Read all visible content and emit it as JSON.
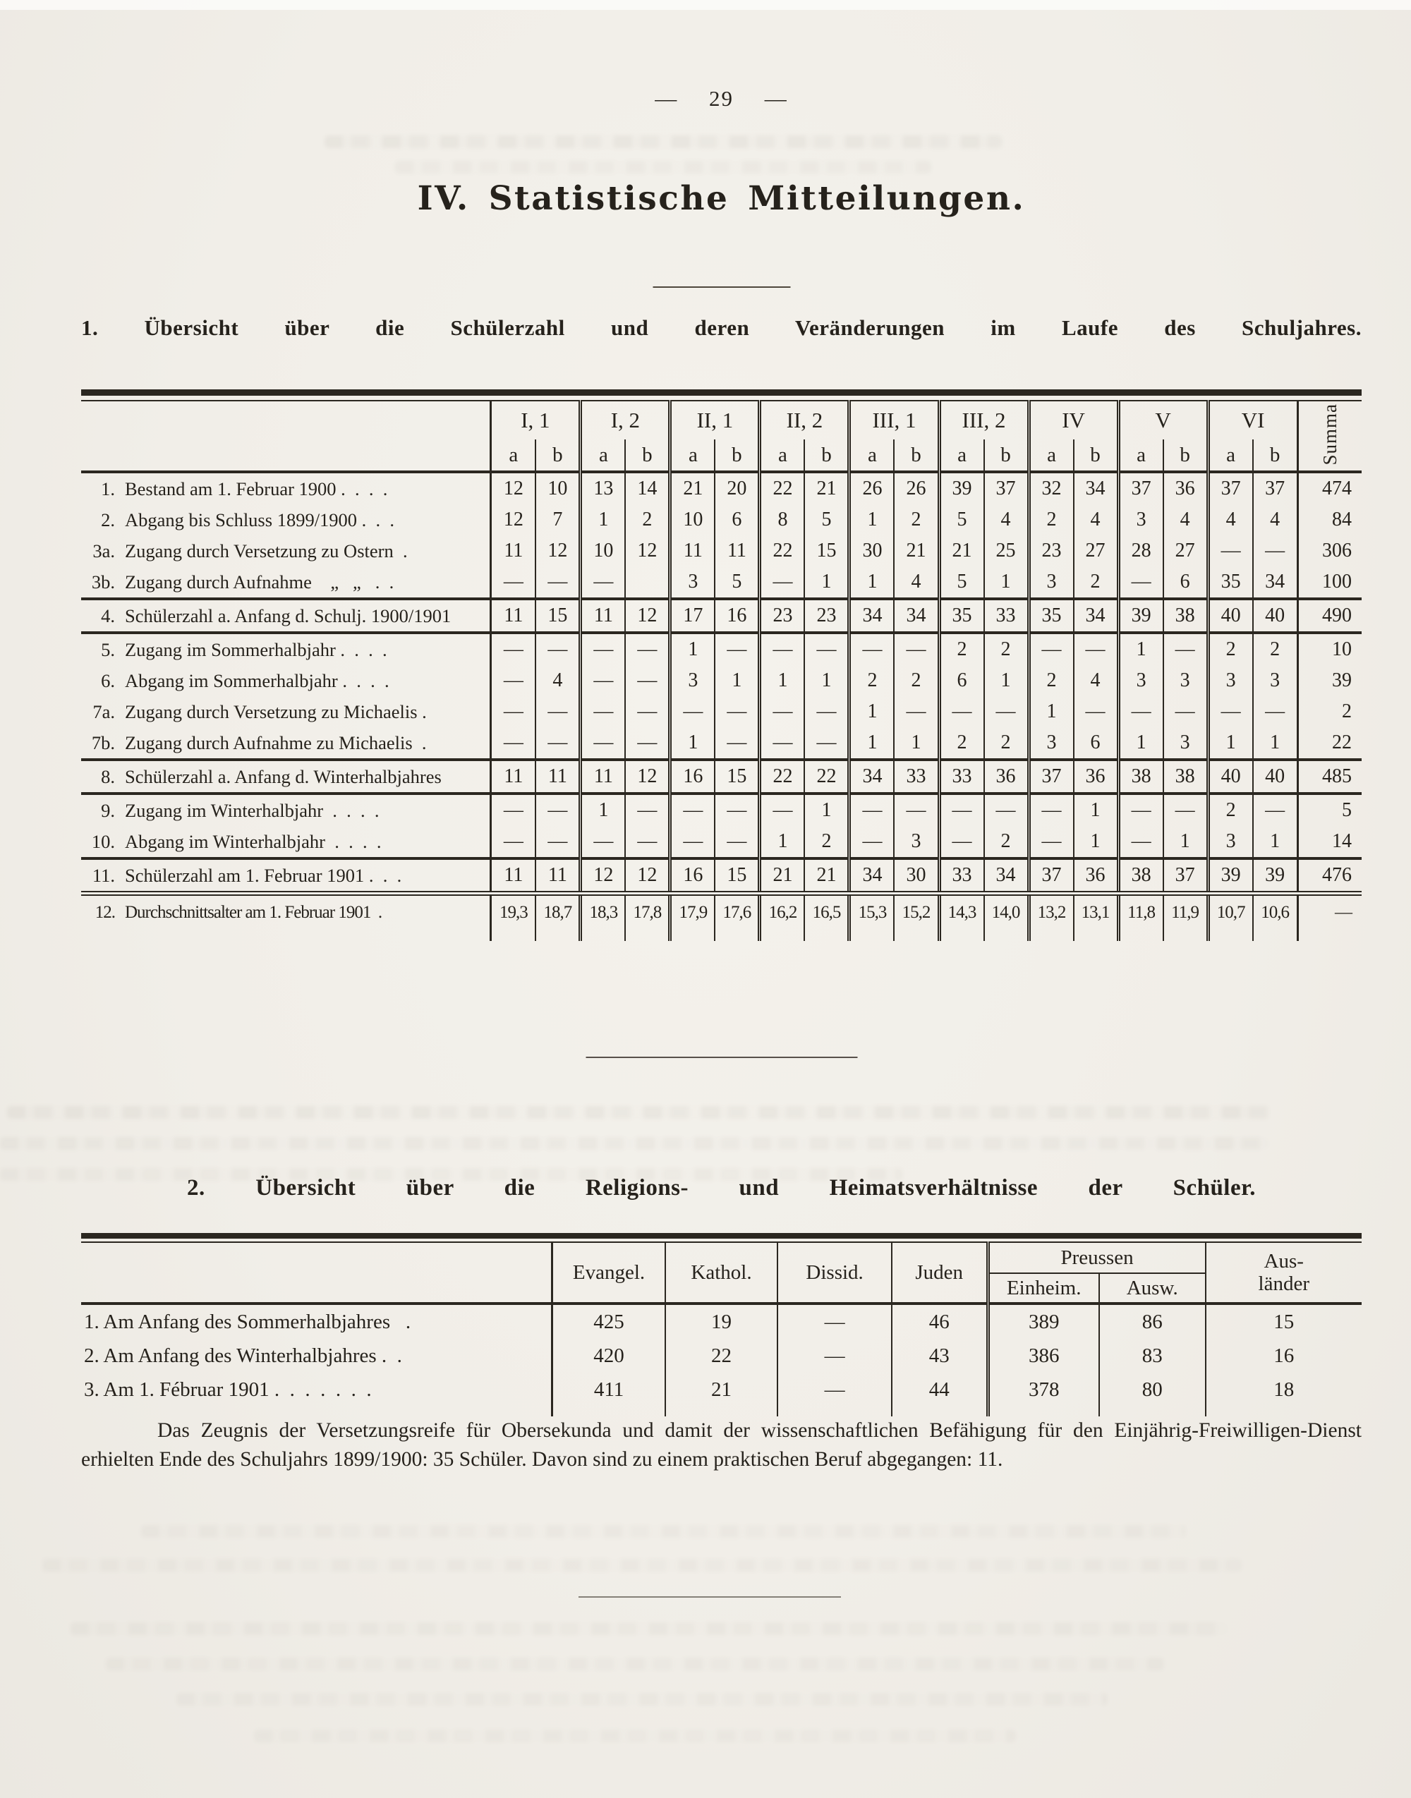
{
  "page": {
    "page_number": "—  29  —",
    "title": "IV. Statistische Mitteilungen."
  },
  "section1": {
    "heading": "1. Übersicht über die Schülerzahl und deren Veränderungen im Laufe des Schuljahres.",
    "table": {
      "class_groups": [
        "I, 1",
        "I, 2",
        "II, 1",
        "II, 2",
        "III, 1",
        "III, 2",
        "IV",
        "V",
        "VI"
      ],
      "subcolumns": [
        "a",
        "b"
      ],
      "summa_label": "Summa",
      "rows": [
        {
          "no": "1.",
          "label": "Bestand am 1. Februar 1900 .  .  .  .",
          "values": [
            "12",
            "10",
            "13",
            "14",
            "21",
            "20",
            "22",
            "21",
            "26",
            "26",
            "39",
            "37",
            "32",
            "34",
            "37",
            "36",
            "37",
            "37"
          ],
          "summa": "474",
          "separator": "",
          "small": false
        },
        {
          "no": "2.",
          "label": "Abgang bis Schluss 1899/1900 .  .  .",
          "values": [
            "12",
            "7",
            "1",
            "2",
            "10",
            "6",
            "8",
            "5",
            "1",
            "2",
            "5",
            "4",
            "2",
            "4",
            "3",
            "4",
            "4",
            "4"
          ],
          "summa": "84",
          "separator": "",
          "small": false
        },
        {
          "no": "3a.",
          "label": "Zugang durch Versetzung zu Ostern  .",
          "values": [
            "11",
            "12",
            "10",
            "12",
            "11",
            "11",
            "22",
            "15",
            "30",
            "21",
            "21",
            "25",
            "23",
            "27",
            "28",
            "27",
            "—",
            "—"
          ],
          "summa": "306",
          "separator": "",
          "small": false
        },
        {
          "no": "3b.",
          "label": "Zugang durch Aufnahme    „   „   .  .",
          "values": [
            "—",
            "—",
            "—",
            "",
            "3",
            "5",
            "—",
            "1",
            "1",
            "4",
            "5",
            "1",
            "3",
            "2",
            "—",
            "6",
            "35",
            "34"
          ],
          "summa": "100",
          "separator": "",
          "small": false
        },
        {
          "no": "4.",
          "label": "Schülerzahl a. Anfang d. Schulj. 1900/1901",
          "values": [
            "11",
            "15",
            "11",
            "12",
            "17",
            "16",
            "23",
            "23",
            "34",
            "34",
            "35",
            "33",
            "35",
            "34",
            "39",
            "38",
            "40",
            "40"
          ],
          "summa": "490",
          "separator": "sep-solid",
          "small": false
        },
        {
          "no": "5.",
          "label": "Zugang im Sommerhalbjahr .  .  .  .",
          "values": [
            "—",
            "—",
            "—",
            "—",
            "1",
            "—",
            "—",
            "—",
            "—",
            "—",
            "2",
            "2",
            "—",
            "—",
            "1",
            "—",
            "2",
            "2"
          ],
          "summa": "10",
          "separator": "sep-solid",
          "small": false
        },
        {
          "no": "6.",
          "label": "Abgang im Sommerhalbjahr .  .  .  .",
          "values": [
            "—",
            "4",
            "—",
            "—",
            "3",
            "1",
            "1",
            "1",
            "2",
            "2",
            "6",
            "1",
            "2",
            "4",
            "3",
            "3",
            "3",
            "3"
          ],
          "summa": "39",
          "separator": "",
          "small": false
        },
        {
          "no": "7a.",
          "label": "Zugang durch Versetzung zu Michaelis .",
          "values": [
            "—",
            "—",
            "—",
            "—",
            "—",
            "—",
            "—",
            "—",
            "1",
            "—",
            "—",
            "—",
            "1",
            "—",
            "—",
            "—",
            "—",
            "—"
          ],
          "summa": "2",
          "separator": "",
          "small": false
        },
        {
          "no": "7b.",
          "label": "Zugang durch Aufnahme zu Michaelis  .",
          "values": [
            "—",
            "—",
            "—",
            "—",
            "1",
            "—",
            "—",
            "—",
            "1",
            "1",
            "2",
            "2",
            "3",
            "6",
            "1",
            "3",
            "1",
            "1"
          ],
          "summa": "22",
          "separator": "",
          "small": false
        },
        {
          "no": "8.",
          "label": "Schülerzahl a. Anfang d. Winterhalbjahres",
          "values": [
            "11",
            "11",
            "11",
            "12",
            "16",
            "15",
            "22",
            "22",
            "34",
            "33",
            "33",
            "36",
            "37",
            "36",
            "38",
            "38",
            "40",
            "40"
          ],
          "summa": "485",
          "separator": "sep-solid",
          "small": false
        },
        {
          "no": "9.",
          "label": "Zugang im Winterhalbjahr  .  .  .  .",
          "values": [
            "—",
            "—",
            "1",
            "—",
            "—",
            "—",
            "—",
            "1",
            "—",
            "—",
            "—",
            "—",
            "—",
            "1",
            "—",
            "—",
            "2",
            "—"
          ],
          "summa": "5",
          "separator": "sep-solid",
          "small": false
        },
        {
          "no": "10.",
          "label": "Abgang im Winterhalbjahr  .  .  .  .",
          "values": [
            "—",
            "—",
            "—",
            "—",
            "—",
            "—",
            "1",
            "2",
            "—",
            "3",
            "—",
            "2",
            "—",
            "1",
            "—",
            "1",
            "3",
            "1"
          ],
          "summa": "14",
          "separator": "",
          "small": false
        },
        {
          "no": "11.",
          "label": "Schülerzahl am 1. Februar 1901 .  .  .",
          "values": [
            "11",
            "11",
            "12",
            "12",
            "16",
            "15",
            "21",
            "21",
            "34",
            "30",
            "33",
            "34",
            "37",
            "36",
            "38",
            "37",
            "39",
            "39"
          ],
          "summa": "476",
          "separator": "sep-solid",
          "small": false
        },
        {
          "no": "12.",
          "label": "Durchschnittsalter am 1. Februar 1901  .",
          "values": [
            "19,3",
            "18,7",
            "18,3",
            "17,8",
            "17,9",
            "17,6",
            "16,2",
            "16,5",
            "15,3",
            "15,2",
            "14,3",
            "14,0",
            "13,2",
            "13,1",
            "11,8",
            "11,9",
            "10,7",
            "10,6"
          ],
          "summa": "—",
          "separator": "sep-double",
          "small": true
        }
      ]
    }
  },
  "section2": {
    "heading": "2. Übersicht über die Religions- und Heimatsverhältnisse der Schüler.",
    "table": {
      "columns": [
        "Evangel.",
        "Kathol.",
        "Dissid.",
        "Juden"
      ],
      "group": {
        "label": "Preussen",
        "columns": [
          "Einheim.",
          "Ausw."
        ]
      },
      "last_column": [
        "Aus-",
        "länder"
      ],
      "rows": [
        {
          "label": "1. Am Anfang des Sommerhalbjahres   .",
          "values": [
            "425",
            "19",
            "—",
            "46",
            "389",
            "86",
            "15"
          ]
        },
        {
          "label": "2. Am Anfang des Winterhalbjahres .  .",
          "values": [
            "420",
            "22",
            "—",
            "43",
            "386",
            "83",
            "16"
          ]
        },
        {
          "label": "3. Am 1. Fébruar 1901 .  .  .  .  .  .  .",
          "values": [
            "411",
            "21",
            "—",
            "44",
            "378",
            "80",
            "18"
          ]
        }
      ]
    }
  },
  "paragraph": "Das Zeugnis der Versetzungsreife für Obersekunda und damit der wissenschaftlichen Befähigung für den Einjährig-Freiwilligen-Dienst erhielten Ende des Schuljahrs 1899/1900: 35 Schüler. Davon sind zu einem praktischen Beruf abgegangen: 11."
}
